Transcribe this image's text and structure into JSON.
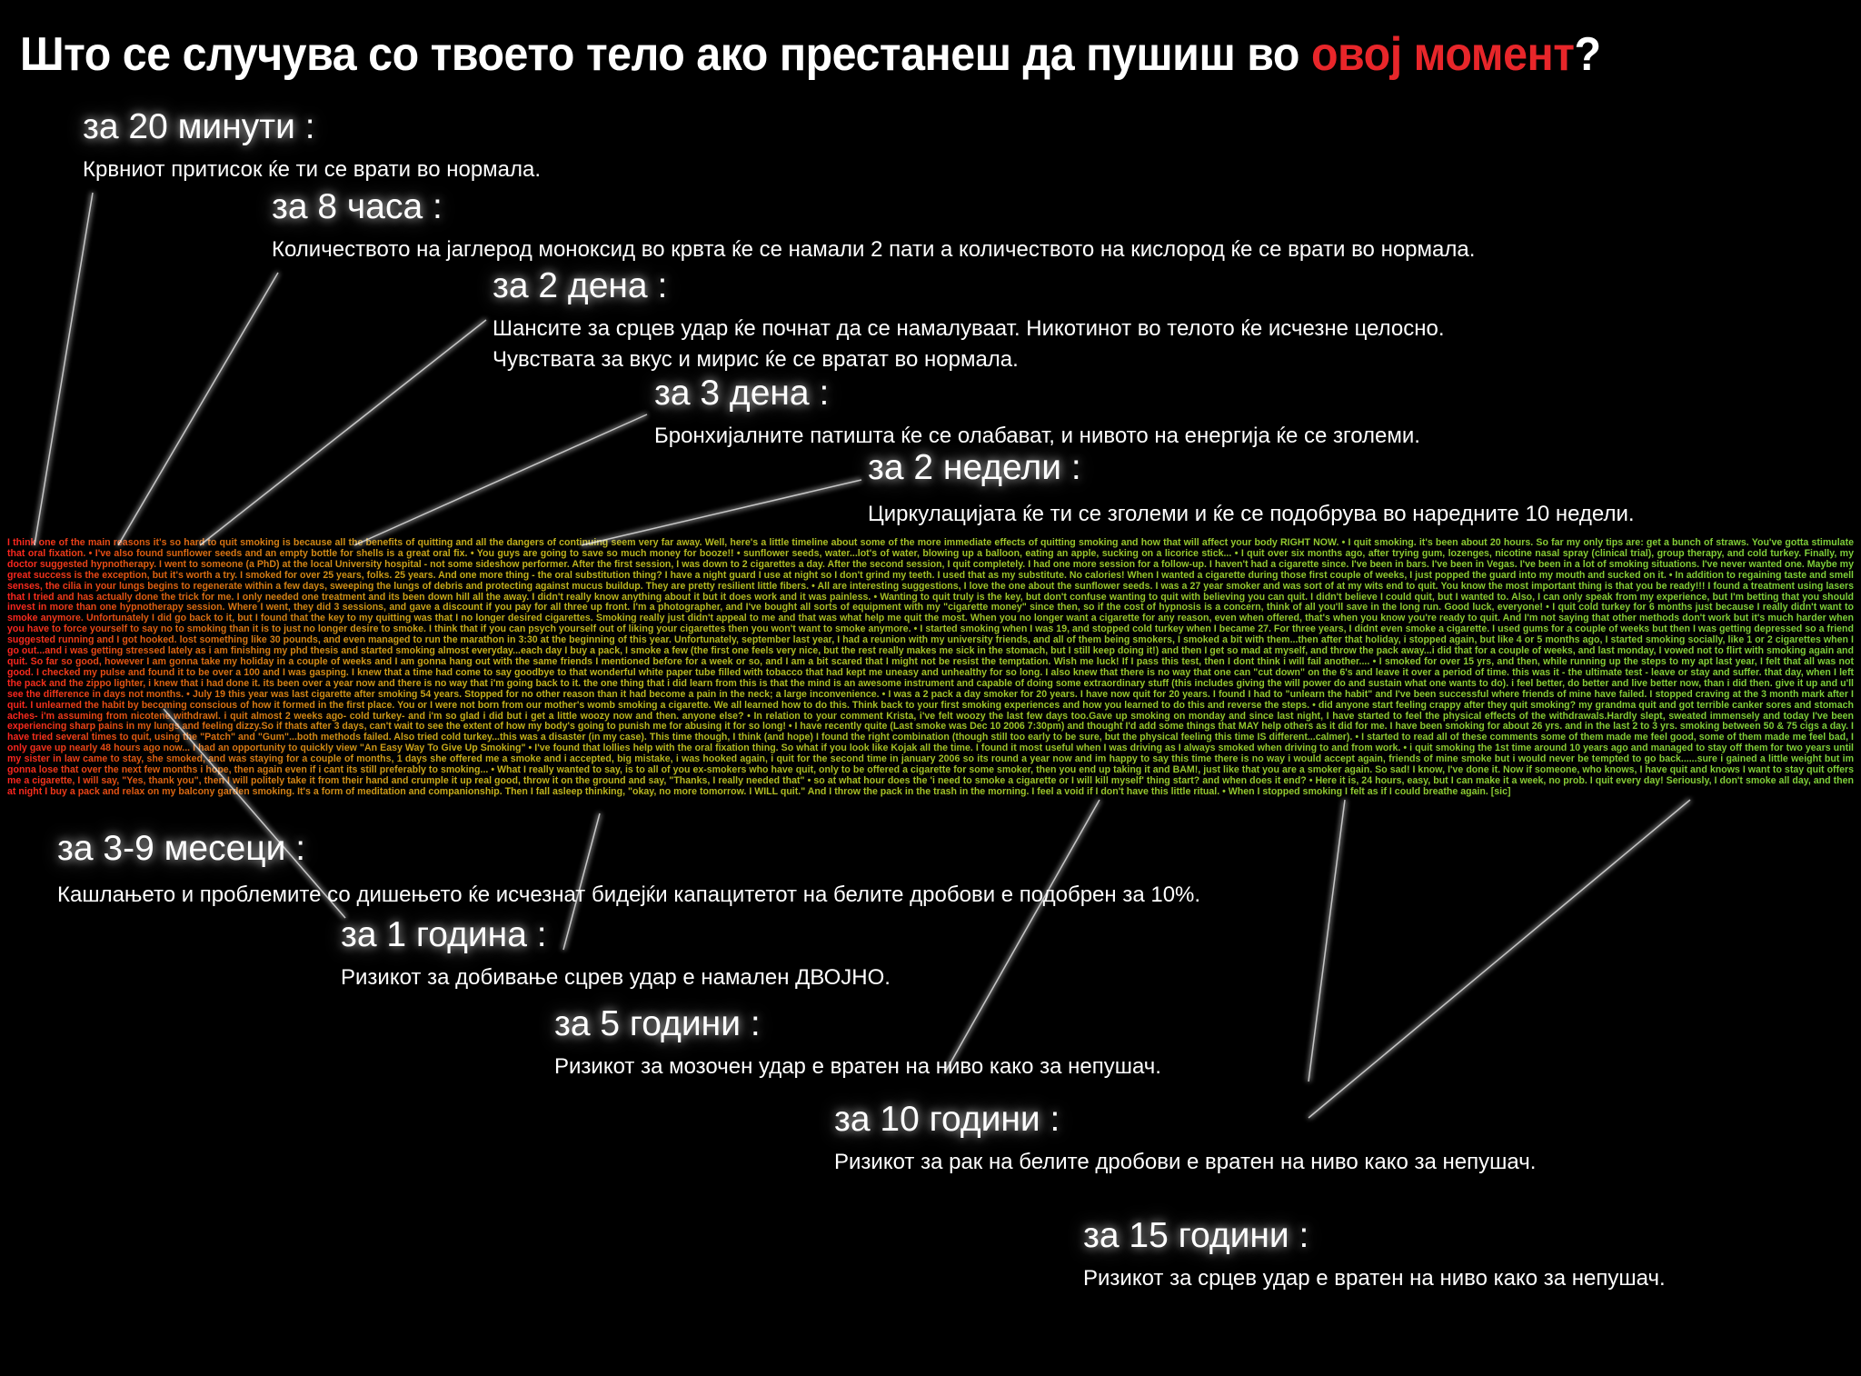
{
  "title": {
    "main": "Што се случува со твоето тело ако престанеш да пушиш во ",
    "highlight": "овој момент",
    "end": "?"
  },
  "highlight_color": "#e8262a",
  "milestones": [
    {
      "heading": "за 20 минути :",
      "text": [
        "Крвниот притисок ќе ти се врати во нормала."
      ]
    },
    {
      "heading": "за 8 часа :",
      "text": [
        "Количеството на јаглерод моноксид во крвта ќе се намали 2 пати а количеството на кислород ќе се врати во нормала."
      ]
    },
    {
      "heading": "за 2 дена :",
      "text": [
        "Шансите за срцев удар ќе почнат да се намалуваат. Никотинот во телото ќе исчезне целосно.",
        "Чувствата за вкус и мирис ќе се вратат во нормала."
      ]
    },
    {
      "heading": "за 3 дена :",
      "text": [
        "Бронхијалните патишта ќе се олабават, и нивото на енергија ќе се зголеми."
      ]
    },
    {
      "heading": "за 2 недели :",
      "text": [
        "Циркулацијата ќе ти се зголеми и ќе се подобрува во наредните 10 недели."
      ]
    },
    {
      "heading": "за 3-9 месеци :",
      "text": [
        "Кашлањето и проблемите со дишењето ќе исчезнат бидејќи капацитетот на белите дробови е подобрен за 10%."
      ]
    },
    {
      "heading": "за 1 година :",
      "text": [
        "Ризикот за добивање сцрев удар е намален ДВОЈНО."
      ]
    },
    {
      "heading": "за 5 години :",
      "text": [
        "Ризикот за мозочен удар е вратен на ниво како за непушач."
      ]
    },
    {
      "heading": "за 10 години :",
      "text": [
        "Ризикот за рак на белите дробови е вратен на ниво како за непушач."
      ]
    },
    {
      "heading": "за 15 години :",
      "text": [
        "Ризикот за срцев удар е вратен на ниво како за непушач."
      ]
    }
  ],
  "testimonials": "I think one of the main reasons it's so hard to quit smoking is because all the benefits of quitting and all the dangers of continuing seem very far away. Well, here's a little timeline about some of the more immediate effects of quitting smoking and how that will affect your body RIGHT NOW. • I quit smoking. it's been about 20 hours. So far my only tips are: get a bunch of straws. You've gotta stimulate that oral fixation. • I've also found sunflower seeds and an empty bottle for shells is a great oral fix. • You guys are going to save so much money for booze!! • sunflower seeds, water...lot's of water, blowing up a balloon, eating an apple, sucking on a licorice stick... • I quit over six months ago, after trying gum, lozenges, nicotine nasal spray (clinical trial), group therapy, and cold turkey. Finally, my doctor suggested hypnotherapy. I went to someone (a PhD) at the local University hospital - not some sideshow performer. After the first session, I was down to 2 cigarettes a day. After the second session, I quit completely. I had one more session for a follow-up. I haven't had a cigarette since. I've been in bars. I've been in Vegas. I've been in a lot of smoking situations. I've never wanted one. Maybe my great success is the exception, but it's worth a try. I smoked for over 25 years, folks. 25 years. And one more thing - the oral substitution thing? I have a night guard I use at night so I don't grind my teeth. I used that as my substitute. No calories! When I wanted a cigarette during those first couple of weeks, I just popped the guard into my mouth and sucked on it. • In addition to regaining taste and smell senses, the cilia in your lungs begins to regenerate within a few days, sweeping the lungs of debris and protecting against mucus buildup. They are pretty resilient little fibers. • All are interesting suggestions, I love the one about the sunflower seeds. I was a 27 year smoker and was sort of at my wits end to quit. You know the most important thing is that you be ready!!! I found a treatment using lasers that I tried and has actually done the trick for me. I only needed one treatment and its been down hill all the away. I didn't really know anything about it but it does work and it was painless. • Wanting to quit truly is the key, but don't confuse wanting to quit with believing you can quit. I didn't believe I could quit, but I wanted to. Also, I can only speak from my experience, but I'm betting that you should invest in more than one hypnotherapy session. Where I went, they did 3 sessions, and gave a discount if you pay for all three up front. I'm a photographer, and I've bought all sorts of equipment with my \"cigarette money\" since then, so if the cost of hypnosis is a concern, think of all you'll save in the long run. Good luck, everyone! • I quit cold turkey for 6 months just because I really didn't want to smoke anymore. Unfortunately I did go back to it, but I found that the key to my quitting was that I no longer desired cigarettes. Smoking really just didn't appeal to me and that was what help me quit the most. When you no longer want a cigarette for any reason, even when offered, that's when you know you're ready to quit. And I'm not saying that other methods don't work but it's much harder when you have to force yourself to say no to smoking than it is to just no longer desire to smoke. I think that if you can psych yourself out of liking your cigarettes then you won't want to smoke anymore. • I started smoking when I was 19, and stopped cold turkey when I became 27. For three years, I didnt even smoke a cigarette. I used gums for a couple of weeks but then I was getting depressed so a friend suggested running and I got hooked. lost something like 30 pounds, and even managed to run the marathon in 3:30 at the beginning of this year. Unfortunately, september last year, I had a reunion with my university friends, and all of them being smokers, I smoked a bit with them...then after that holiday, i stopped again, but like 4 or 5 months ago, I started smoking socially, like 1 or 2 cigarettes when I go out...and i was getting stressed lately as i am finishing my phd thesis and started smoking almost everyday...each day I buy a pack, I smoke a few (the first one feels very nice, but the rest really makes me sick in the stomach, but I still keep doing it!) and then I get so mad at myself, and throw the pack away...i did that for a couple of weeks, and last monday, I vowed not to flirt with smoking again and quit. So far so good, however I am gonna take my holiday in a couple of weeks and I am gonna hang out with the same friends I mentioned before for a week or so, and I am a bit scared that I might not be resist the temptation. Wish me luck! If I pass this test, then I dont think i will fail another.... • I smoked for over 15 yrs, and then, while running up the steps to my apt last year, I felt that all was not good. I checked my pulse and found it to be over a 100 and I was gasping. I knew that a time had come to say goodbye to that wonderful white paper tube filled with tobacco that had kept me uneasy and unhealthy for so long. I also knew that there is no way that one can \"cut down\" on the 6's and leave it over a period of time. this was it - the ultimate test - leave or stay and suffer. that day, when I left the pack and the zippo lighter, i knew that i had done it. its been over a year now and there is no way that i'm going back to it. the one thing that i did learn from this is that the mind is an awesome instrument and capable of doing some extraordinary stuff (this includes giving the will power do and sustain what one wants to do). i feel better, do better and live better now, than i did then. give it up and u'll see the difference in days not months. • July 19 this year was last cigarette after smoking 54 years. Stopped for no other reason than it had become a pain in the neck; a large inconvenience. • I was a 2 pack a day smoker for 20 years. I have now quit for 20 years. I found I had to \"unlearn the habit\" and I've been successful where friends of mine have failed. I stopped craving at the 3 month mark after I quit. I unlearned the habit by becoming conscious of how it formed in the first place. You or I were not born from our mother's womb smoking a cigarette. We all learned how to do this. Think back to your first smoking experiences and how you learned to do this and reverse the steps. • did anyone start feeling crappy after they quit smoking? my grandma quit and got terrible canker sores and stomach aches- i'm assuming from nicotene withdrawl. i quit almost 2 weeks ago- cold turkey- and i'm so glad i did but i get a little woozy now and then. anyone else? • In relation to your comment Krista, i've felt woozy the last few days too.Gave up smoking on monday and since last night, I have started to feel the physical effects of the withdrawals.Hardly slept, sweated immensely and today I've been experiencing sharp pains in my lungs and feeling dizzy.So if thats after 3 days, can't wait to see the extent of how my body's going to punish me for abusing it for so long! • I have recently quite (Last smoke was Dec 10 2006 7:30pm) and thought I'd add some things that MAY help others as it did for me. I have been smoking for about 26 yrs. and in the last 2 to 3 yrs. smoking between 50 & 75 cigs a day. I have tried several times to quit, using the \"Patch\" and \"Gum\"...both methods failed. Also tried cold turkey...this was a disaster (in my case). This time though, I think (and hope) I found the right combination (though still too early to be sure, but the physical feeling this time IS different...calmer). • I started to read all of these comments some of them made me feel good, some of them made me feel bad, I only gave up nearly 48 hours ago now... I had an opportunity to quickly view \"An Easy Way To Give Up Smoking\" • I've found that lollies help with the oral fixation thing. So what if you look like Kojak all the time. I found it most useful when I was driving as I always smoked when driving to and from work. • i quit smoking the 1st time around 10 years ago and managed to stay off them for two years until my sister in law came to stay, she smoked, and was staying for a couple of months, 1 days she offered me a smoke and i accepted, big mistake, i was hooked again, i quit for the second time in january 2006 so its round a year now and im happy to say this time there is no way i would accept again, friends of mine smoke but i would never be tempted to go back......sure i gained a little weight but im gonna lose that over the next few months i hope, then again even if i cant its still preferably to smoking... • What I really wanted to say, is to all of you ex-smokers who have quit, only to be offered a cigarette for some smoker, then you end up taking it and BAM!, just like that you are a smoker again. So sad! I know, I've done it. Now if someone, who knows, I have quit and knows I want to stay quit offers me a cigarette, I will say, \"Yes, thank you\", then I will politely take it from their hand and crumple it up real good, throw it on the ground and say, \"Thanks, I really needed that\" • so at what hour does the 'i need to smoke a cigarette or I will kill myself' thing start? and when does it end? • Here it is, 24 hours, easy, but I can make it a week, no prob. I quit every day! Seriously, I don't smoke all day, and then at night I buy a pack and relax on my balcony garden smoking. It's a form of meditation and companionship. Then I fall asleep thinking, \"okay, no more tomorrow. I WILL quit.\" And I throw the pack in the trash in the morning. I feel a void if I don't have this little ritual. • When I stopped smoking I felt as if I could breathe again. [sic]"
}
